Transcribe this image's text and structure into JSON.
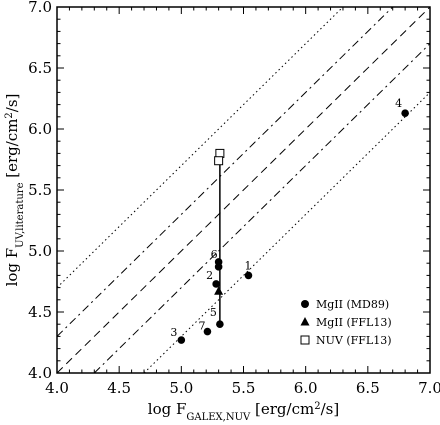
{
  "chart_data": {
    "type": "scatter",
    "xlabel": {
      "main": "log F",
      "sub": "GALEX,NUV",
      "unit_pre": " [erg/cm",
      "unit_sup": "2",
      "unit_post": "/s]"
    },
    "ylabel": {
      "main": "log F",
      "sub": "UV,literature",
      "unit_pre": " [erg/cm",
      "unit_sup": "2",
      "unit_post": "/s]"
    },
    "xlim": [
      4.0,
      7.0
    ],
    "ylim": [
      4.0,
      7.0
    ],
    "xticks": [
      "4.0",
      "4.5",
      "5.0",
      "5.5",
      "6.0",
      "6.5",
      "7.0"
    ],
    "yticks": [
      "4.0",
      "4.5",
      "5.0",
      "5.5",
      "6.0",
      "6.5",
      "7.0"
    ],
    "grid": false,
    "legend_position": "bottom-right",
    "series": [
      {
        "name": "MgII (MD89)",
        "marker": "circle",
        "points": [
          {
            "label": "1",
            "x": 5.54,
            "y": 4.8
          },
          {
            "label": "2",
            "x": 5.28,
            "y": 4.73
          },
          {
            "label": "3",
            "x": 5.0,
            "y": 4.27
          },
          {
            "label": "4",
            "x": 6.8,
            "y": 6.13
          },
          {
            "label": "5",
            "x": 5.31,
            "y": 4.4
          },
          {
            "label": "6",
            "x": 5.3,
            "y": 4.91
          },
          {
            "label": "7",
            "x": 5.21,
            "y": 4.34
          },
          {
            "label": "",
            "x": 5.3,
            "y": 4.87
          }
        ]
      },
      {
        "name": "MgII (FFL13)",
        "marker": "triangle",
        "points": [
          {
            "label": "",
            "x": 5.3,
            "y": 4.67
          }
        ]
      },
      {
        "name": "NUV (FFL13)",
        "marker": "square-open",
        "points": [
          {
            "label": "",
            "x": 5.31,
            "y": 5.8
          },
          {
            "label": "",
            "x": 5.3,
            "y": 5.74
          }
        ]
      }
    ],
    "connector": {
      "x": 5.31,
      "y_from": 4.4,
      "y_to": 5.8
    },
    "reference_lines": [
      {
        "style": "dotted",
        "offset": 0.7
      },
      {
        "style": "dashdot",
        "offset": 0.3
      },
      {
        "style": "dashed",
        "offset": 0.0
      },
      {
        "style": "dashdot",
        "offset": -0.3
      },
      {
        "style": "dotted",
        "offset": -0.7
      }
    ]
  }
}
